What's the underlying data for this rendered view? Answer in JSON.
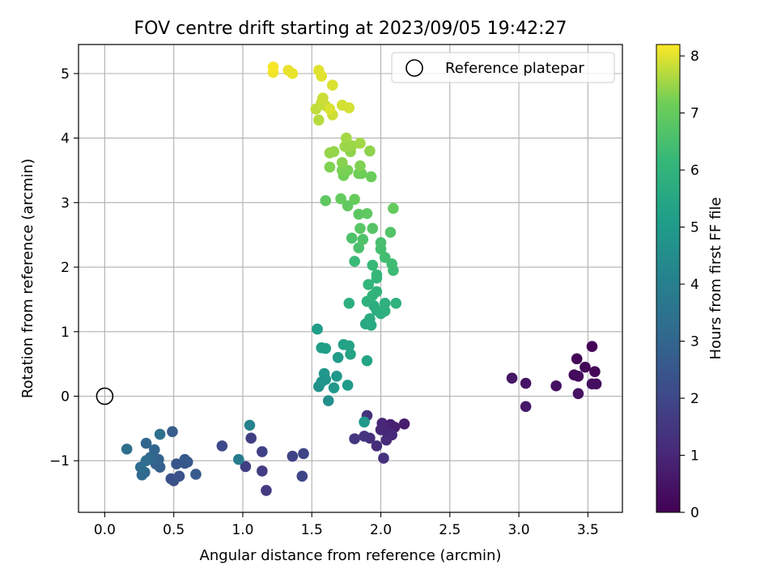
{
  "chart_data": {
    "type": "scatter",
    "title": "FOV centre drift starting at 2023/09/05 19:42:27",
    "xlabel": "Angular distance from reference (arcmin)",
    "ylabel": "Rotation from reference (arcmin)",
    "xlim": [
      -0.19,
      3.75
    ],
    "ylim": [
      -1.8,
      5.45
    ],
    "xticks": [
      0.0,
      0.5,
      1.0,
      1.5,
      2.0,
      2.5,
      3.0,
      3.5
    ],
    "xtick_labels": [
      "0.0",
      "0.5",
      "1.0",
      "1.5",
      "2.0",
      "2.5",
      "3.0",
      "3.5"
    ],
    "yticks": [
      -1,
      0,
      1,
      2,
      3,
      4,
      5
    ],
    "ytick_labels": [
      "−1",
      "0",
      "1",
      "2",
      "3",
      "4",
      "5"
    ],
    "grid": true,
    "legend": {
      "position": "top-right",
      "entries": [
        "Reference platepar"
      ]
    },
    "reference_point": {
      "x": 0.0,
      "y": 0.0
    },
    "colorbar": {
      "label": "Hours from first FF file",
      "range": [
        0,
        8.2
      ],
      "ticks": [
        0,
        1,
        2,
        3,
        4,
        5,
        6,
        7,
        8
      ],
      "tick_labels": [
        "0",
        "1",
        "2",
        "3",
        "4",
        "5",
        "6",
        "7",
        "8"
      ],
      "colormap": "viridis"
    },
    "points": [
      [
        3.53,
        0.77,
        0.05
      ],
      [
        3.42,
        0.58,
        0.08
      ],
      [
        3.48,
        0.45,
        0.12
      ],
      [
        3.55,
        0.38,
        0.15
      ],
      [
        3.4,
        0.33,
        0.2
      ],
      [
        3.43,
        0.31,
        0.25
      ],
      [
        3.56,
        0.19,
        0.3
      ],
      [
        3.53,
        0.19,
        0.35
      ],
      [
        3.27,
        0.16,
        0.4
      ],
      [
        3.43,
        0.04,
        0.45
      ],
      [
        3.05,
        0.2,
        0.5
      ],
      [
        2.95,
        0.28,
        0.55
      ],
      [
        3.05,
        -0.16,
        0.6
      ],
      [
        2.17,
        -0.43,
        0.75
      ],
      [
        2.1,
        -0.48,
        0.8
      ],
      [
        2.07,
        -0.44,
        0.85
      ],
      [
        2.03,
        -0.49,
        0.9
      ],
      [
        2.05,
        -0.58,
        0.95
      ],
      [
        2.01,
        -0.42,
        1.0
      ],
      [
        2.0,
        -0.52,
        1.05
      ],
      [
        2.08,
        -0.6,
        1.1
      ],
      [
        2.04,
        -0.68,
        1.15
      ],
      [
        1.97,
        -0.77,
        1.2
      ],
      [
        1.92,
        -0.65,
        1.25
      ],
      [
        2.02,
        -0.96,
        1.3
      ],
      [
        1.9,
        -0.3,
        1.35
      ],
      [
        1.88,
        -0.62,
        1.4
      ],
      [
        1.81,
        -0.66,
        1.45
      ],
      [
        1.17,
        -1.46,
        1.6
      ],
      [
        1.14,
        -1.16,
        1.65
      ],
      [
        1.02,
        -1.09,
        1.7
      ],
      [
        1.06,
        -0.65,
        1.75
      ],
      [
        1.14,
        -0.86,
        1.8
      ],
      [
        1.36,
        -0.93,
        1.85
      ],
      [
        1.44,
        -0.89,
        1.9
      ],
      [
        1.43,
        -1.24,
        1.95
      ],
      [
        0.85,
        -0.77,
        2.05
      ],
      [
        0.5,
        -1.31,
        2.3
      ],
      [
        0.48,
        -1.28,
        2.35
      ],
      [
        0.54,
        -1.24,
        2.4
      ],
      [
        0.52,
        -1.05,
        2.45
      ],
      [
        0.58,
        -1.04,
        2.5
      ],
      [
        0.6,
        -1.02,
        2.55
      ],
      [
        0.58,
        -0.98,
        2.6
      ],
      [
        0.66,
        -1.21,
        2.65
      ],
      [
        0.49,
        -0.55,
        2.7
      ],
      [
        0.4,
        -1.1,
        2.8
      ],
      [
        0.37,
        -1.05,
        2.85
      ],
      [
        0.34,
        -0.97,
        2.9
      ],
      [
        0.39,
        -0.98,
        2.95
      ],
      [
        0.36,
        -0.83,
        3.0
      ],
      [
        0.3,
        -0.73,
        3.05
      ],
      [
        0.33,
        -0.95,
        3.1
      ],
      [
        0.27,
        -1.22,
        3.15
      ],
      [
        0.29,
        -1.18,
        3.2
      ],
      [
        0.26,
        -1.1,
        3.25
      ],
      [
        0.3,
        -1.0,
        3.3
      ],
      [
        0.16,
        -0.82,
        3.35
      ],
      [
        0.4,
        -0.59,
        3.4
      ],
      [
        0.97,
        -0.98,
        3.85
      ],
      [
        1.05,
        -0.45,
        4.1
      ],
      [
        1.62,
        -0.07,
        4.6
      ],
      [
        1.55,
        0.15,
        4.7
      ],
      [
        1.57,
        0.22,
        4.75
      ],
      [
        1.6,
        0.26,
        4.8
      ],
      [
        1.59,
        0.35,
        4.85
      ],
      [
        1.66,
        0.13,
        4.9
      ],
      [
        1.68,
        0.31,
        4.95
      ],
      [
        1.76,
        0.17,
        5.0
      ],
      [
        1.69,
        0.6,
        5.05
      ],
      [
        1.54,
        1.04,
        5.1
      ],
      [
        1.57,
        0.75,
        5.15
      ],
      [
        1.6,
        0.74,
        5.2
      ],
      [
        1.73,
        0.8,
        5.25
      ],
      [
        1.77,
        0.78,
        5.3
      ],
      [
        1.78,
        0.65,
        5.35
      ],
      [
        1.9,
        0.55,
        5.4
      ],
      [
        1.88,
        -0.4,
        4.95
      ],
      [
        1.89,
        1.12,
        5.55
      ],
      [
        1.93,
        1.1,
        5.6
      ],
      [
        1.92,
        1.2,
        5.65
      ],
      [
        1.97,
        1.33,
        5.7
      ],
      [
        1.95,
        1.4,
        5.75
      ],
      [
        2.0,
        1.28,
        5.8
      ],
      [
        2.03,
        1.32,
        5.85
      ],
      [
        2.03,
        1.44,
        5.85
      ],
      [
        2.11,
        1.44,
        5.9
      ],
      [
        1.9,
        1.47,
        5.95
      ],
      [
        1.94,
        1.56,
        6.0
      ],
      [
        1.97,
        1.62,
        6.0
      ],
      [
        1.91,
        1.73,
        6.05
      ],
      [
        1.97,
        1.83,
        6.1
      ],
      [
        1.97,
        1.88,
        6.15
      ],
      [
        1.94,
        2.03,
        6.2
      ],
      [
        1.77,
        1.44,
        5.8
      ],
      [
        1.81,
        2.09,
        6.25
      ],
      [
        2.09,
        1.95,
        6.3
      ],
      [
        2.08,
        2.05,
        6.35
      ],
      [
        2.03,
        2.15,
        6.4
      ],
      [
        2.0,
        2.28,
        6.45
      ],
      [
        2.0,
        2.38,
        6.5
      ],
      [
        1.84,
        2.3,
        6.55
      ],
      [
        1.79,
        2.45,
        6.6
      ],
      [
        1.87,
        2.43,
        6.65
      ],
      [
        2.07,
        2.54,
        6.7
      ],
      [
        1.94,
        2.6,
        6.75
      ],
      [
        1.85,
        2.6,
        6.8
      ],
      [
        1.84,
        2.82,
        6.85
      ],
      [
        1.9,
        2.83,
        6.9
      ],
      [
        1.76,
        2.95,
        6.95
      ],
      [
        2.09,
        2.91,
        7.0
      ],
      [
        1.6,
        3.03,
        6.9
      ],
      [
        1.71,
        3.06,
        7.0
      ],
      [
        1.81,
        3.05,
        7.05
      ],
      [
        1.93,
        3.4,
        7.1
      ],
      [
        1.84,
        3.45,
        7.15
      ],
      [
        1.86,
        3.45,
        7.15
      ],
      [
        1.73,
        3.42,
        7.2
      ],
      [
        1.76,
        3.5,
        7.25
      ],
      [
        1.72,
        3.5,
        7.25
      ],
      [
        1.63,
        3.55,
        7.3
      ],
      [
        1.85,
        3.57,
        7.3
      ],
      [
        1.72,
        3.62,
        7.35
      ],
      [
        1.78,
        3.79,
        7.4
      ],
      [
        1.92,
        3.8,
        7.4
      ],
      [
        1.63,
        3.77,
        7.45
      ],
      [
        1.66,
        3.79,
        7.45
      ],
      [
        1.74,
        3.87,
        7.5
      ],
      [
        1.79,
        3.88,
        7.5
      ],
      [
        1.85,
        3.92,
        7.55
      ],
      [
        1.75,
        4.0,
        7.55
      ],
      [
        1.55,
        4.28,
        7.7
      ],
      [
        1.53,
        4.45,
        7.75
      ],
      [
        1.57,
        4.55,
        7.8
      ],
      [
        1.6,
        4.5,
        7.8
      ],
      [
        1.58,
        4.62,
        7.85
      ],
      [
        1.65,
        4.36,
        7.85
      ],
      [
        1.72,
        4.51,
        7.9
      ],
      [
        1.77,
        4.47,
        7.9
      ],
      [
        1.63,
        4.45,
        7.95
      ],
      [
        1.65,
        4.82,
        7.95
      ],
      [
        1.57,
        4.96,
        8.0
      ],
      [
        1.55,
        5.05,
        8.0
      ],
      [
        1.36,
        5.0,
        8.05
      ],
      [
        1.33,
        5.05,
        8.05
      ],
      [
        1.22,
        5.02,
        8.1
      ],
      [
        1.22,
        5.1,
        8.15
      ]
    ]
  }
}
